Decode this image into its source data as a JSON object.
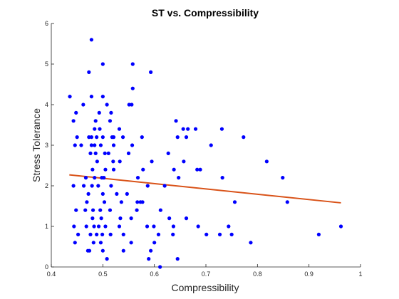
{
  "chart_data": {
    "type": "scatter",
    "title": "ST vs. Compressibility",
    "xlabel": "Compressibility",
    "ylabel": "Stress Tolerance",
    "xlim": [
      0.4,
      1.0
    ],
    "ylim": [
      0,
      6
    ],
    "xticks": [
      0.4,
      0.5,
      0.6,
      0.7,
      0.8,
      0.9,
      1.0
    ],
    "xtick_labels": [
      "0.4",
      "0.5",
      "0.6",
      "0.7",
      "0.8",
      "0.9",
      "1"
    ],
    "yticks": [
      0,
      1,
      2,
      3,
      4,
      5,
      6
    ],
    "ytick_labels": [
      "0",
      "1",
      "2",
      "3",
      "4",
      "5",
      "6"
    ],
    "grid": false,
    "colors": {
      "points": "#0000ff",
      "fit_line": "#d95319",
      "axes": "#262626"
    },
    "series": [
      {
        "type": "scatter",
        "points": [
          [
            0.478,
            5.6
          ],
          [
            0.5,
            5.0
          ],
          [
            0.558,
            5.0
          ],
          [
            0.473,
            4.8
          ],
          [
            0.593,
            4.8
          ],
          [
            0.558,
            4.4
          ],
          [
            0.436,
            4.2
          ],
          [
            0.478,
            4.2
          ],
          [
            0.5,
            4.2
          ],
          [
            0.462,
            4.0
          ],
          [
            0.508,
            4.0
          ],
          [
            0.551,
            4.0
          ],
          [
            0.556,
            4.0
          ],
          [
            0.493,
            3.8
          ],
          [
            0.516,
            3.8
          ],
          [
            0.448,
            3.8
          ],
          [
            0.443,
            3.6
          ],
          [
            0.486,
            3.6
          ],
          [
            0.514,
            3.6
          ],
          [
            0.642,
            3.6
          ],
          [
            0.484,
            3.4
          ],
          [
            0.494,
            3.4
          ],
          [
            0.532,
            3.4
          ],
          [
            0.656,
            3.4
          ],
          [
            0.665,
            3.4
          ],
          [
            0.68,
            3.4
          ],
          [
            0.731,
            3.4
          ],
          [
            0.473,
            3.2
          ],
          [
            0.478,
            3.2
          ],
          [
            0.488,
            3.2
          ],
          [
            0.5,
            3.2
          ],
          [
            0.518,
            3.2
          ],
          [
            0.521,
            3.2
          ],
          [
            0.539,
            3.2
          ],
          [
            0.576,
            3.2
          ],
          [
            0.645,
            3.2
          ],
          [
            0.662,
            3.2
          ],
          [
            0.773,
            3.2
          ],
          [
            0.446,
            3.0
          ],
          [
            0.45,
            3.2
          ],
          [
            0.458,
            3.0
          ],
          [
            0.478,
            3.0
          ],
          [
            0.484,
            3.0
          ],
          [
            0.496,
            3.0
          ],
          [
            0.521,
            3.0
          ],
          [
            0.557,
            3.0
          ],
          [
            0.71,
            3.0
          ],
          [
            0.476,
            2.8
          ],
          [
            0.486,
            2.8
          ],
          [
            0.504,
            2.8
          ],
          [
            0.511,
            2.8
          ],
          [
            0.55,
            2.8
          ],
          [
            0.627,
            2.8
          ],
          [
            0.489,
            2.6
          ],
          [
            0.52,
            2.6
          ],
          [
            0.533,
            2.6
          ],
          [
            0.595,
            2.6
          ],
          [
            0.657,
            2.6
          ],
          [
            0.818,
            2.6
          ],
          [
            0.48,
            2.4
          ],
          [
            0.505,
            2.4
          ],
          [
            0.521,
            2.4
          ],
          [
            0.578,
            2.4
          ],
          [
            0.638,
            2.4
          ],
          [
            0.683,
            2.4
          ],
          [
            0.689,
            2.4
          ],
          [
            0.467,
            2.2
          ],
          [
            0.484,
            2.2
          ],
          [
            0.498,
            2.2
          ],
          [
            0.502,
            2.2
          ],
          [
            0.568,
            2.2
          ],
          [
            0.647,
            2.2
          ],
          [
            0.732,
            2.2
          ],
          [
            0.849,
            2.2
          ],
          [
            0.443,
            2.0
          ],
          [
            0.463,
            2.0
          ],
          [
            0.479,
            2.0
          ],
          [
            0.491,
            2.0
          ],
          [
            0.516,
            2.0
          ],
          [
            0.587,
            2.0
          ],
          [
            0.62,
            2.0
          ],
          [
            0.472,
            1.8
          ],
          [
            0.5,
            1.8
          ],
          [
            0.527,
            1.8
          ],
          [
            0.547,
            1.8
          ],
          [
            0.469,
            1.6
          ],
          [
            0.503,
            1.6
          ],
          [
            0.536,
            1.6
          ],
          [
            0.567,
            1.6
          ],
          [
            0.573,
            1.6
          ],
          [
            0.577,
            1.6
          ],
          [
            0.756,
            1.6
          ],
          [
            0.858,
            1.6
          ],
          [
            0.481,
            1.4
          ],
          [
            0.495,
            1.4
          ],
          [
            0.514,
            1.4
          ],
          [
            0.448,
            1.4
          ],
          [
            0.466,
            1.4
          ],
          [
            0.566,
            1.4
          ],
          [
            0.612,
            1.4
          ],
          [
            0.48,
            1.2
          ],
          [
            0.497,
            1.2
          ],
          [
            0.534,
            1.2
          ],
          [
            0.555,
            1.2
          ],
          [
            0.629,
            1.2
          ],
          [
            0.662,
            1.2
          ],
          [
            0.444,
            1.0
          ],
          [
            0.468,
            1.0
          ],
          [
            0.483,
            1.0
          ],
          [
            0.492,
            1.0
          ],
          [
            0.505,
            1.0
          ],
          [
            0.532,
            1.0
          ],
          [
            0.586,
            1.0
          ],
          [
            0.599,
            1.0
          ],
          [
            0.637,
            1.0
          ],
          [
            0.685,
            1.0
          ],
          [
            0.744,
            1.0
          ],
          [
            0.962,
            1.0
          ],
          [
            0.452,
            0.8
          ],
          [
            0.476,
            0.8
          ],
          [
            0.488,
            0.8
          ],
          [
            0.499,
            0.8
          ],
          [
            0.515,
            0.8
          ],
          [
            0.54,
            0.8
          ],
          [
            0.608,
            0.8
          ],
          [
            0.636,
            0.8
          ],
          [
            0.701,
            0.8
          ],
          [
            0.727,
            0.8
          ],
          [
            0.75,
            0.8
          ],
          [
            0.919,
            0.8
          ],
          [
            0.446,
            0.6
          ],
          [
            0.482,
            0.6
          ],
          [
            0.496,
            0.6
          ],
          [
            0.555,
            0.6
          ],
          [
            0.6,
            0.6
          ],
          [
            0.787,
            0.6
          ],
          [
            0.471,
            0.4
          ],
          [
            0.474,
            0.4
          ],
          [
            0.5,
            0.4
          ],
          [
            0.54,
            0.4
          ],
          [
            0.593,
            0.4
          ],
          [
            0.508,
            0.2
          ],
          [
            0.589,
            0.2
          ],
          [
            0.645,
            0.2
          ],
          [
            0.611,
            0.0
          ]
        ]
      },
      {
        "type": "line",
        "x": [
          0.435,
          0.962
        ],
        "y": [
          2.27,
          1.58
        ]
      }
    ]
  }
}
